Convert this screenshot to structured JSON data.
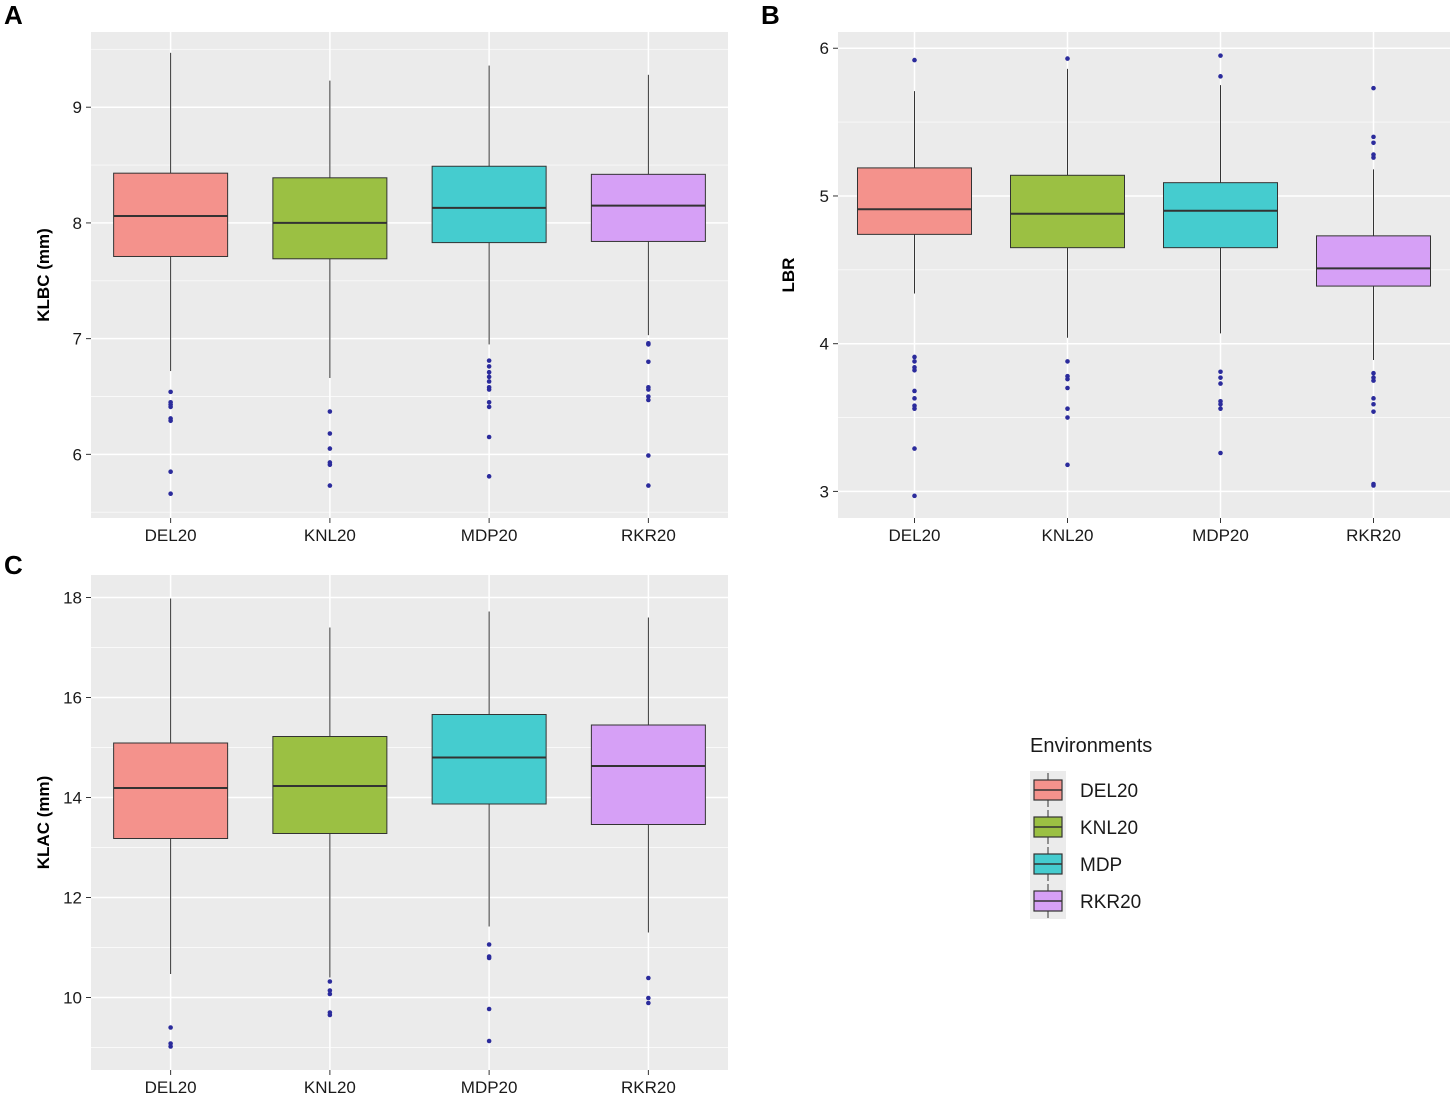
{
  "colors": {
    "panel_bg": "#ebebeb",
    "grid": "#ffffff",
    "whisker": "#333333",
    "median": "#333333",
    "outlier": "#2b2b9c",
    "DEL20": "#f4928c",
    "KNL20": "#9bc043",
    "MDP20": "#45cccf",
    "RKR20": "#d6a0f6"
  },
  "legend": {
    "title": "Environments",
    "items": [
      {
        "label": "DEL20",
        "color_key": "DEL20"
      },
      {
        "label": "KNL20",
        "color_key": "KNL20"
      },
      {
        "label": "MDP",
        "color_key": "MDP20"
      },
      {
        "label": "RKR20",
        "color_key": "RKR20"
      }
    ]
  },
  "chart_data": [
    {
      "panel": "A",
      "type": "boxplot",
      "ylabel": "KLBC (mm)",
      "xlabel": "",
      "ylim": [
        5.45,
        9.65
      ],
      "yticks": [
        6,
        7,
        8,
        9
      ],
      "categories": [
        "DEL20",
        "KNL20",
        "MDP20",
        "RKR20"
      ],
      "boxes": [
        {
          "category": "DEL20",
          "whisker_low": 6.72,
          "q1": 7.71,
          "median": 8.06,
          "q3": 8.43,
          "whisker_high": 9.47,
          "outliers": [
            6.54,
            6.45,
            6.43,
            6.41,
            6.31,
            6.29,
            5.85,
            5.66
          ]
        },
        {
          "category": "KNL20",
          "whisker_low": 6.66,
          "q1": 7.69,
          "median": 8.0,
          "q3": 8.39,
          "whisker_high": 9.23,
          "outliers": [
            6.37,
            6.18,
            6.05,
            5.93,
            5.91,
            5.73
          ]
        },
        {
          "category": "MDP20",
          "whisker_low": 6.95,
          "q1": 7.83,
          "median": 8.13,
          "q3": 8.49,
          "whisker_high": 9.36,
          "outliers": [
            6.81,
            6.76,
            6.71,
            6.67,
            6.63,
            6.58,
            6.56,
            6.45,
            6.41,
            6.15,
            5.81
          ]
        },
        {
          "category": "RKR20",
          "whisker_low": 7.03,
          "q1": 7.84,
          "median": 8.15,
          "q3": 8.42,
          "whisker_high": 9.28,
          "outliers": [
            6.96,
            6.95,
            6.8,
            6.58,
            6.56,
            6.5,
            6.47,
            5.99,
            5.73
          ]
        }
      ]
    },
    {
      "panel": "B",
      "type": "boxplot",
      "ylabel": "LBR",
      "xlabel": "",
      "ylim": [
        2.82,
        6.11
      ],
      "yticks": [
        3,
        4,
        5,
        6
      ],
      "categories": [
        "DEL20",
        "KNL20",
        "MDP20",
        "RKR20"
      ],
      "boxes": [
        {
          "category": "DEL20",
          "whisker_low": 4.34,
          "q1": 4.74,
          "median": 4.91,
          "q3": 5.19,
          "whisker_high": 5.71,
          "outliers": [
            5.92,
            3.91,
            3.88,
            3.84,
            3.82,
            3.68,
            3.63,
            3.58,
            3.56,
            3.29,
            2.97
          ]
        },
        {
          "category": "KNL20",
          "whisker_low": 4.04,
          "q1": 4.65,
          "median": 4.88,
          "q3": 5.14,
          "whisker_high": 5.86,
          "outliers": [
            5.93,
            3.88,
            3.78,
            3.76,
            3.7,
            3.56,
            3.5,
            3.18
          ]
        },
        {
          "category": "MDP20",
          "whisker_low": 4.07,
          "q1": 4.65,
          "median": 4.9,
          "q3": 5.09,
          "whisker_high": 5.75,
          "outliers": [
            5.95,
            5.81,
            3.81,
            3.77,
            3.73,
            3.61,
            3.59,
            3.56,
            3.26
          ]
        },
        {
          "category": "RKR20",
          "whisker_low": 3.89,
          "q1": 4.39,
          "median": 4.51,
          "q3": 4.73,
          "whisker_high": 5.18,
          "outliers": [
            5.73,
            5.4,
            5.36,
            5.28,
            5.26,
            3.8,
            3.77,
            3.75,
            3.63,
            3.59,
            3.54,
            3.05,
            3.04
          ]
        }
      ]
    },
    {
      "panel": "C",
      "type": "boxplot",
      "ylabel": "KLAC (mm)",
      "xlabel": "",
      "ylim": [
        8.55,
        18.45
      ],
      "yticks": [
        10,
        12,
        14,
        16,
        18
      ],
      "categories": [
        "DEL20",
        "KNL20",
        "MDP20",
        "RKR20"
      ],
      "boxes": [
        {
          "category": "DEL20",
          "whisker_low": 10.47,
          "q1": 13.18,
          "median": 14.19,
          "q3": 15.09,
          "whisker_high": 17.98,
          "outliers": [
            9.4,
            9.08,
            9.02
          ]
        },
        {
          "category": "KNL20",
          "whisker_low": 10.4,
          "q1": 13.28,
          "median": 14.23,
          "q3": 15.22,
          "whisker_high": 17.4,
          "outliers": [
            10.32,
            10.14,
            10.07,
            9.7,
            9.65
          ]
        },
        {
          "category": "MDP20",
          "whisker_low": 11.42,
          "q1": 13.87,
          "median": 14.8,
          "q3": 15.66,
          "whisker_high": 17.72,
          "outliers": [
            11.06,
            10.82,
            10.79,
            9.77,
            9.13
          ]
        },
        {
          "category": "RKR20",
          "whisker_low": 11.3,
          "q1": 13.46,
          "median": 14.63,
          "q3": 15.45,
          "whisker_high": 17.6,
          "outliers": [
            10.39,
            9.99,
            9.89
          ]
        }
      ]
    }
  ]
}
